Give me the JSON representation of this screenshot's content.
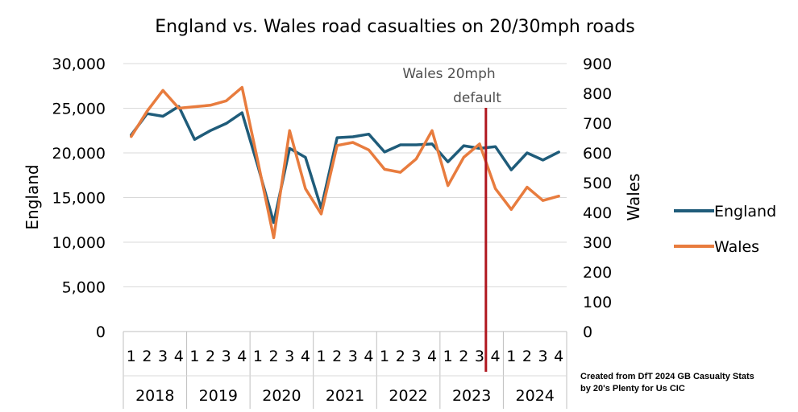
{
  "chart_data": {
    "type": "line",
    "title": "England vs. Wales road casualties on 20/30mph roads",
    "ylabel_left": "England",
    "ylabel_right": "Wales",
    "ylim_left": [
      0,
      30000
    ],
    "ylim_right": [
      0,
      900
    ],
    "yticks_left": [
      "0",
      "5,000",
      "10,000",
      "15,000",
      "20,000",
      "25,000",
      "30,000"
    ],
    "yticks_right": [
      "0",
      "100",
      "200",
      "300",
      "400",
      "500",
      "600",
      "700",
      "800",
      "900"
    ],
    "quarters": [
      "1",
      "2",
      "3",
      "4"
    ],
    "years": [
      "2018",
      "2019",
      "2020",
      "2021",
      "2022",
      "2023",
      "2024"
    ],
    "gridlines": true,
    "legend_position": "right",
    "series": [
      {
        "name": "England",
        "axis": "left",
        "color": "#1f5c7a",
        "values": [
          22000,
          24400,
          24100,
          25200,
          21500,
          22500,
          23300,
          24500,
          18500,
          12200,
          20500,
          19500,
          13800,
          21700,
          21800,
          22100,
          20100,
          20900,
          20900,
          21000,
          19000,
          20800,
          20500,
          20700,
          18100,
          20000,
          19200,
          20100
        ]
      },
      {
        "name": "Wales",
        "axis": "right",
        "color": "#e87c3e",
        "values": [
          655,
          740,
          810,
          750,
          755,
          760,
          775,
          820,
          570,
          315,
          675,
          480,
          395,
          625,
          635,
          610,
          545,
          535,
          580,
          675,
          490,
          585,
          630,
          480,
          410,
          485,
          440,
          455
        ]
      }
    ],
    "annotation": {
      "line1": "Wales 20mph",
      "line2": "default",
      "color": "#b0171f",
      "year": "2023",
      "quarter": "3"
    },
    "credit": {
      "line1": "Created from DfT 2024 GB Casualty Stats",
      "line2": "by 20's Plenty for Us CIC"
    }
  }
}
